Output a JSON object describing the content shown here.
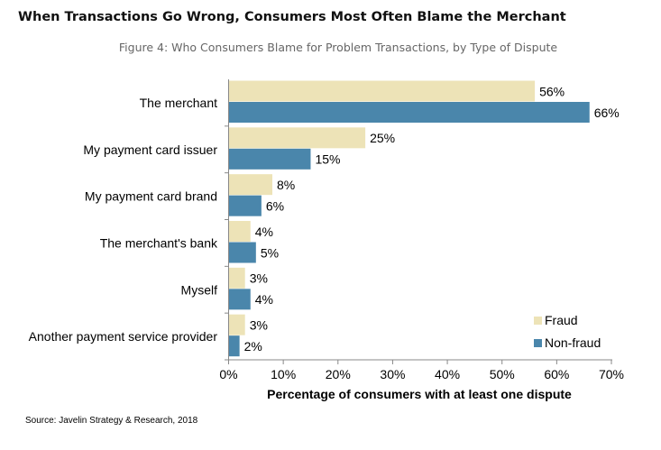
{
  "chart_data": {
    "type": "bar",
    "orientation": "horizontal",
    "title": "When Transactions Go Wrong, Consumers Most Often Blame the Merchant",
    "subtitle": "Figure 4: Who Consumers Blame for Problem Transactions, by Type of Dispute",
    "categories": [
      "The merchant",
      "My payment card issuer",
      "My payment card brand",
      "The merchant's bank",
      "Myself",
      "Another payment service provider"
    ],
    "series": [
      {
        "name": "Fraud",
        "color": "#EDE3B7",
        "values": [
          56,
          25,
          8,
          4,
          3,
          3
        ]
      },
      {
        "name": "Non-fraud",
        "color": "#4A86AB",
        "values": [
          66,
          15,
          6,
          5,
          4,
          2
        ]
      }
    ],
    "xlabel": "Percentage of consumers with at least one dispute",
    "xlim": [
      0,
      70
    ],
    "xticks": [
      "0%",
      "10%",
      "20%",
      "30%",
      "40%",
      "50%",
      "60%",
      "70%"
    ],
    "value_suffix": "%",
    "grid": false,
    "legend": "bottom-right",
    "source": "Source: Javelin Strategy & Research, 2018"
  }
}
